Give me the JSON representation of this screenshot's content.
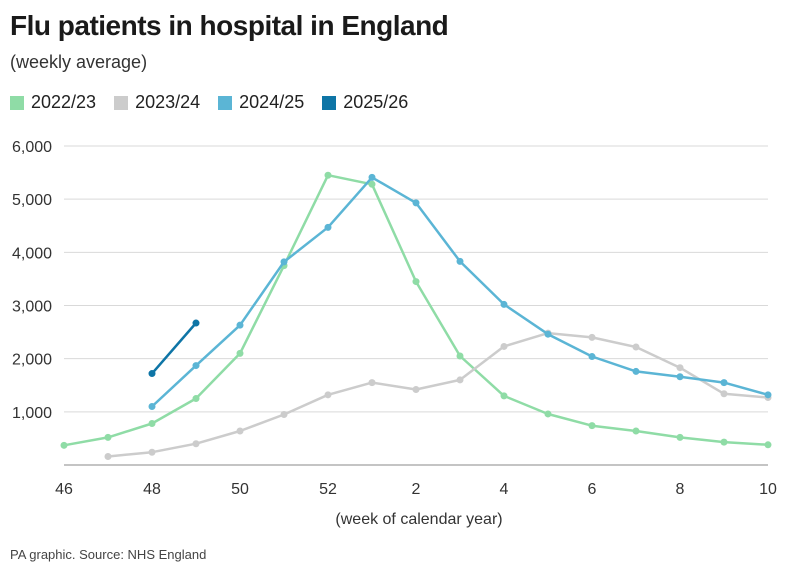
{
  "chart_data": {
    "type": "line",
    "title": "Flu patients in hospital in England",
    "subtitle": "(weekly average)",
    "xlabel": "(week of calendar year)",
    "ylabel": "",
    "source": "PA graphic. Source: NHS England",
    "x_categories": [
      "46",
      "47",
      "48",
      "49",
      "50",
      "51",
      "52",
      "1",
      "2",
      "3",
      "4",
      "5",
      "6",
      "7",
      "8",
      "9",
      "10"
    ],
    "x_tick_labels": [
      "46",
      "48",
      "50",
      "52",
      "2",
      "4",
      "6",
      "8",
      "10"
    ],
    "y_ticks": [
      "1,000",
      "2,000",
      "3,000",
      "4,000",
      "5,000",
      "6,000"
    ],
    "ylim": [
      0,
      6000
    ],
    "grid": "horizontal",
    "legend_position": "top-left",
    "series": [
      {
        "name": "2022/23",
        "color": "#8fdca6",
        "values": [
          370,
          520,
          780,
          1250,
          2100,
          3750,
          5450,
          5280,
          3450,
          2050,
          1300,
          960,
          740,
          640,
          520,
          430,
          380
        ]
      },
      {
        "name": "2023/24",
        "color": "#cccccc",
        "values": [
          null,
          160,
          240,
          400,
          640,
          950,
          1320,
          1550,
          1420,
          1600,
          2230,
          2480,
          2400,
          2220,
          1830,
          1340,
          1270
        ]
      },
      {
        "name": "2024/25",
        "color": "#5bb5d5",
        "values": [
          null,
          null,
          1100,
          1870,
          2630,
          3820,
          4470,
          5410,
          4930,
          3830,
          3020,
          2460,
          2040,
          1760,
          1660,
          1550,
          1320
        ]
      },
      {
        "name": "2025/26",
        "color": "#0e75a6",
        "values": [
          null,
          null,
          1720,
          2670,
          null,
          null,
          null,
          null,
          null,
          null,
          null,
          null,
          null,
          null,
          null,
          null,
          null
        ]
      }
    ]
  }
}
